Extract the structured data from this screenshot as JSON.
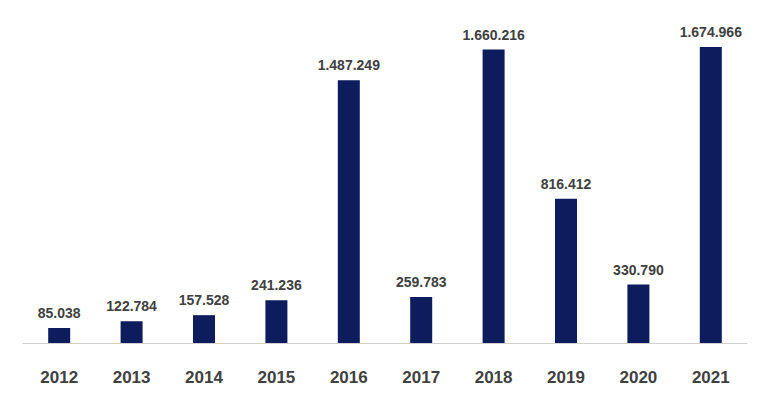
{
  "chart_data": {
    "type": "bar",
    "categories": [
      "2012",
      "2013",
      "2014",
      "2015",
      "2016",
      "2017",
      "2018",
      "2019",
      "2020",
      "2021"
    ],
    "values": [
      85038,
      122784,
      157528,
      241236,
      1487249,
      259783,
      1660216,
      816412,
      330790,
      1674966
    ],
    "value_labels": [
      "85.038",
      "122.784",
      "157.528",
      "241.236",
      "1.487.249",
      "259.783",
      "1.660.216",
      "816.412",
      "330.790",
      "1.674.966"
    ],
    "color": "#0c1c5c",
    "data_labels": true,
    "tick_labels": "x",
    "grid": false
  }
}
